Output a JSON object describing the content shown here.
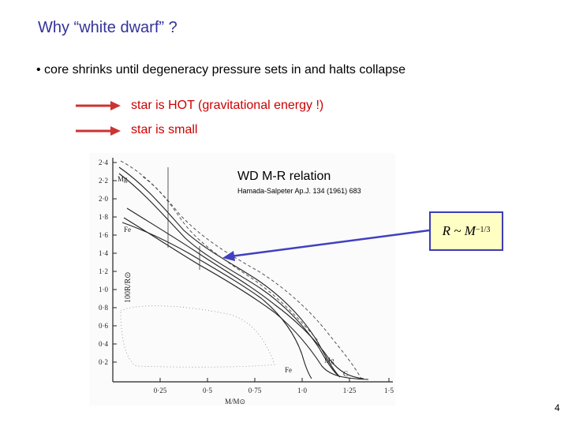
{
  "slide": {
    "title": "Why “white dwarf” ?",
    "bullet": "• core shrinks until degeneracy pressure sets in and halts collapse",
    "arrow_items": [
      "star is HOT (gravitational energy !)",
      "star is small"
    ],
    "figure_caption": "WD M-R relation",
    "figure_reference": "Hamada-Salpeter Ap.J. 134 (1961) 683",
    "formula": {
      "lhs": "R ~ M",
      "exponent": "−1/3"
    },
    "page_number": "4"
  },
  "figure": {
    "ylabel": "100R/R⊙",
    "xlabel": "M/M⊙",
    "yticks": [
      "2·4",
      "2·2",
      "2·0",
      "1·8",
      "1·6",
      "1·4",
      "1·2",
      "1·0",
      "0·8",
      "0·6",
      "0·4",
      "0·2"
    ],
    "xticks": [
      "0·25",
      "0·5",
      "0·75",
      "1·0",
      "1·25",
      "1·5"
    ],
    "curve_labels": [
      "Mg",
      "Fe",
      "Mg",
      "Fe",
      "C"
    ]
  },
  "colors": {
    "title": "#333399",
    "arrow": "#cc3333",
    "arrow_text": "#cc0000",
    "pointer": "#4040c0",
    "formula_bg": "#ffffc4",
    "formula_border": "#3b3bb8"
  }
}
